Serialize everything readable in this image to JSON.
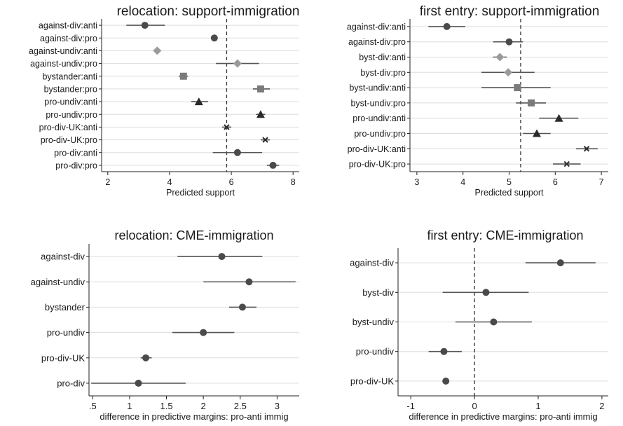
{
  "chart_data": [
    {
      "type": "dot-whisker",
      "title": "relocation: support-immigration",
      "xlabel": "Predicted support",
      "xlim": [
        1.8,
        8.2
      ],
      "xticks": [
        "2",
        "4",
        "6",
        "8"
      ],
      "xtick_values": [
        2,
        4,
        6,
        8
      ],
      "reference_line": 5.85,
      "grid": "horizontal",
      "rows": [
        {
          "label": "against-div:anti",
          "value": 3.2,
          "lo": 2.6,
          "hi": 3.85,
          "marker": "circle",
          "color": "#4a4a4a"
        },
        {
          "label": "against-div:pro",
          "value": 5.45,
          "lo": 5.35,
          "hi": 5.55,
          "marker": "circle",
          "color": "#4a4a4a"
        },
        {
          "label": "against-undiv:anti",
          "value": 3.6,
          "lo": 3.55,
          "hi": 3.65,
          "marker": "diamond",
          "color": "#9a9a9a"
        },
        {
          "label": "against-undiv:pro",
          "value": 6.2,
          "lo": 5.5,
          "hi": 6.9,
          "marker": "diamond",
          "color": "#9a9a9a"
        },
        {
          "label": "bystander:anti",
          "value": 4.45,
          "lo": 4.3,
          "hi": 4.6,
          "marker": "square",
          "color": "#7a7a7a"
        },
        {
          "label": "bystander:pro",
          "value": 6.95,
          "lo": 6.7,
          "hi": 7.25,
          "marker": "square",
          "color": "#7a7a7a"
        },
        {
          "label": "pro-undiv:anti",
          "value": 4.95,
          "lo": 4.7,
          "hi": 5.25,
          "marker": "triangle",
          "color": "#2a2a2a"
        },
        {
          "label": "pro-undiv:pro",
          "value": 6.95,
          "lo": 6.8,
          "hi": 7.1,
          "marker": "triangle",
          "color": "#2a2a2a"
        },
        {
          "label": "pro-div-UK:anti",
          "value": 5.85,
          "lo": 5.7,
          "hi": 6.0,
          "marker": "x",
          "color": "#2a2a2a"
        },
        {
          "label": "pro-div-UK:pro",
          "value": 7.1,
          "lo": 6.95,
          "hi": 7.25,
          "marker": "x",
          "color": "#2a2a2a"
        },
        {
          "label": "pro-div:anti",
          "value": 6.2,
          "lo": 5.4,
          "hi": 7.0,
          "marker": "circle",
          "color": "#4a4a4a"
        },
        {
          "label": "pro-div:pro",
          "value": 7.35,
          "lo": 7.15,
          "hi": 7.55,
          "marker": "circle",
          "color": "#4a4a4a"
        }
      ]
    },
    {
      "type": "dot-whisker",
      "title": "first entry: support-immigration",
      "xlabel": "Predicted support",
      "xlim": [
        2.85,
        7.15
      ],
      "xticks": [
        "3",
        "4",
        "5",
        "6",
        "7"
      ],
      "xtick_values": [
        3,
        4,
        5,
        6,
        7
      ],
      "reference_line": 5.25,
      "grid": "horizontal",
      "rows": [
        {
          "label": "against-div:anti",
          "value": 3.65,
          "lo": 3.25,
          "hi": 4.05,
          "marker": "circle",
          "color": "#4a4a4a"
        },
        {
          "label": "against-div:pro",
          "value": 5.0,
          "lo": 4.65,
          "hi": 5.3,
          "marker": "circle",
          "color": "#4a4a4a"
        },
        {
          "label": "byst-div:anti",
          "value": 4.8,
          "lo": 4.65,
          "hi": 4.95,
          "marker": "diamond",
          "color": "#9a9a9a"
        },
        {
          "label": "byst-div:pro",
          "value": 4.98,
          "lo": 4.4,
          "hi": 5.55,
          "marker": "diamond",
          "color": "#9a9a9a"
        },
        {
          "label": "byst-undiv:anti",
          "value": 5.18,
          "lo": 4.4,
          "hi": 5.9,
          "marker": "square",
          "color": "#7a7a7a"
        },
        {
          "label": "byst-undiv:pro",
          "value": 5.48,
          "lo": 5.15,
          "hi": 5.8,
          "marker": "square",
          "color": "#7a7a7a"
        },
        {
          "label": "pro-undiv:anti",
          "value": 6.08,
          "lo": 5.65,
          "hi": 6.5,
          "marker": "triangle",
          "color": "#2a2a2a"
        },
        {
          "label": "pro-undiv:pro",
          "value": 5.6,
          "lo": 5.3,
          "hi": 5.9,
          "marker": "triangle",
          "color": "#2a2a2a"
        },
        {
          "label": "pro-div-UK:anti",
          "value": 6.68,
          "lo": 6.45,
          "hi": 6.92,
          "marker": "x",
          "color": "#2a2a2a"
        },
        {
          "label": "pro-div-UK:pro",
          "value": 6.25,
          "lo": 5.95,
          "hi": 6.55,
          "marker": "x",
          "color": "#2a2a2a"
        }
      ]
    },
    {
      "type": "dot-whisker",
      "title": "relocation: CME-immigration",
      "xlabel": "difference in predictive margins: pro-anti immig",
      "xlim": [
        0.45,
        3.3
      ],
      "xticks": [
        ".5",
        "1",
        "1.5",
        "2",
        "2.5",
        "3"
      ],
      "xtick_values": [
        0.5,
        1,
        1.5,
        2,
        2.5,
        3
      ],
      "reference_line": null,
      "grid": "horizontal",
      "rows": [
        {
          "label": "against-div",
          "value": 2.25,
          "lo": 1.65,
          "hi": 2.8,
          "marker": "circle",
          "color": "#4a4a4a"
        },
        {
          "label": "against-undiv",
          "value": 2.62,
          "lo": 2.0,
          "hi": 3.25,
          "marker": "circle",
          "color": "#4a4a4a"
        },
        {
          "label": "bystander",
          "value": 2.53,
          "lo": 2.35,
          "hi": 2.72,
          "marker": "circle",
          "color": "#4a4a4a"
        },
        {
          "label": "pro-undiv",
          "value": 2.0,
          "lo": 1.58,
          "hi": 2.42,
          "marker": "circle",
          "color": "#4a4a4a"
        },
        {
          "label": "pro-div-UK",
          "value": 1.22,
          "lo": 1.15,
          "hi": 1.3,
          "marker": "circle",
          "color": "#4a4a4a"
        },
        {
          "label": "pro-div",
          "value": 1.12,
          "lo": 0.48,
          "hi": 1.76,
          "marker": "circle",
          "color": "#4a4a4a"
        }
      ]
    },
    {
      "type": "dot-whisker",
      "title": "first entry: CME-immigration",
      "xlabel": "difference in predictive margins: pro-anti immig",
      "xlim": [
        -1.2,
        2.1
      ],
      "xticks": [
        "-1",
        "0",
        "1",
        "2"
      ],
      "xtick_values": [
        -1,
        0,
        1,
        2
      ],
      "reference_line": 0,
      "grid": "horizontal",
      "rows": [
        {
          "label": "against-div",
          "value": 1.35,
          "lo": 0.8,
          "hi": 1.9,
          "marker": "circle",
          "color": "#4a4a4a"
        },
        {
          "label": "byst-div",
          "value": 0.18,
          "lo": -0.5,
          "hi": 0.85,
          "marker": "circle",
          "color": "#4a4a4a"
        },
        {
          "label": "byst-undiv",
          "value": 0.3,
          "lo": -0.3,
          "hi": 0.9,
          "marker": "circle",
          "color": "#4a4a4a"
        },
        {
          "label": "pro-undiv",
          "value": -0.48,
          "lo": -0.72,
          "hi": -0.2,
          "marker": "circle",
          "color": "#4a4a4a"
        },
        {
          "label": "pro-div-UK",
          "value": -0.45,
          "lo": -0.5,
          "hi": -0.4,
          "marker": "circle",
          "color": "#4a4a4a"
        }
      ]
    }
  ]
}
